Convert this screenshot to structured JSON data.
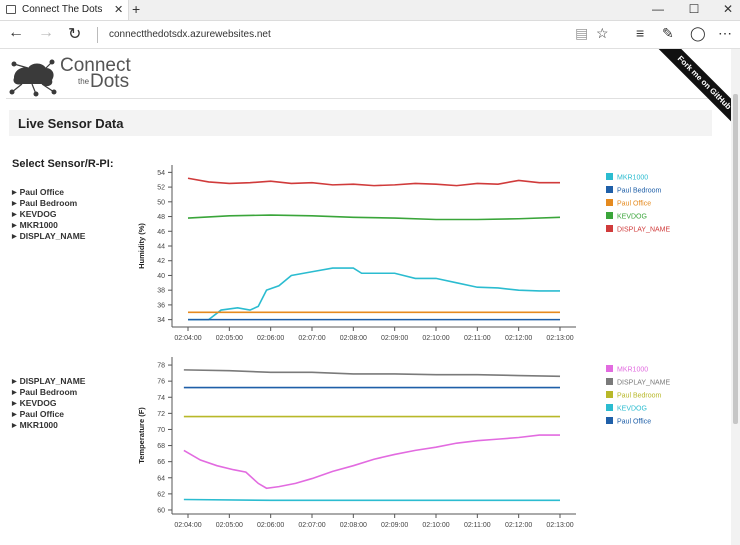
{
  "tab": {
    "title": "Connect The Dots",
    "close": "✕",
    "new": "+"
  },
  "window": {
    "min": "—",
    "max": "☐",
    "close": "✕"
  },
  "address": {
    "url": "connectthedotsdx.azurewebsites.net"
  },
  "logo": {
    "line1": "Connect",
    "line2": "the",
    "line3": "Dots"
  },
  "ribbon": {
    "label": "Fork me on GitHub"
  },
  "section": {
    "title": "Live Sensor Data"
  },
  "sidebar": {
    "label": "Select Sensor/R-PI:",
    "humidity_list": [
      "Paul Office",
      "Paul Bedroom",
      "KEVDOG",
      "MKR1000",
      "DISPLAY_NAME"
    ],
    "temperature_list": [
      "DISPLAY_NAME",
      "Paul Bedroom",
      "KEVDOG",
      "Paul Office",
      "MKR1000"
    ]
  },
  "chart_data": [
    {
      "type": "line",
      "title": "",
      "ylabel": "Humidity (%)",
      "xlabel": "",
      "ylim": [
        33,
        55
      ],
      "yticks": [
        34,
        36,
        38,
        40,
        42,
        44,
        46,
        48,
        50,
        52,
        54
      ],
      "x": [
        "02:04:00",
        "02:05:00",
        "02:06:00",
        "02:07:00",
        "02:08:00",
        "02:09:00",
        "02:10:00",
        "02:11:00",
        "02:12:00",
        "02:13:00"
      ],
      "grid": false,
      "legend_position": "right",
      "series": [
        {
          "name": "MKR1000",
          "color": "#2bbcd0",
          "points": [
            [
              0,
              34
            ],
            [
              0.5,
              34
            ],
            [
              0.8,
              35.3
            ],
            [
              1.2,
              35.6
            ],
            [
              1.5,
              35.3
            ],
            [
              1.7,
              35.8
            ],
            [
              1.9,
              38
            ],
            [
              2.2,
              38.6
            ],
            [
              2.5,
              40
            ],
            [
              3,
              40.5
            ],
            [
              3.5,
              41
            ],
            [
              4,
              41
            ],
            [
              4.2,
              40.3
            ],
            [
              5,
              40.3
            ],
            [
              5.5,
              39.6
            ],
            [
              6,
              39.6
            ],
            [
              6.5,
              39
            ],
            [
              7,
              38.4
            ],
            [
              7.5,
              38.3
            ],
            [
              8,
              38
            ],
            [
              8.5,
              37.9
            ],
            [
              9,
              37.9
            ]
          ]
        },
        {
          "name": "Paul Bedroom",
          "color": "#1f5fa8",
          "points": [
            [
              0,
              34
            ],
            [
              9,
              34
            ]
          ]
        },
        {
          "name": "Paul Office",
          "color": "#e58a1f",
          "points": [
            [
              0,
              35
            ],
            [
              9,
              35
            ]
          ]
        },
        {
          "name": "KEVDOG",
          "color": "#3aa53a",
          "points": [
            [
              0,
              47.8
            ],
            [
              1,
              48.1
            ],
            [
              2,
              48.2
            ],
            [
              3,
              48.1
            ],
            [
              4,
              47.9
            ],
            [
              5,
              47.8
            ],
            [
              6,
              47.6
            ],
            [
              7,
              47.6
            ],
            [
              8,
              47.7
            ],
            [
              9,
              47.9
            ]
          ]
        },
        {
          "name": "DISPLAY_NAME",
          "color": "#d03b3b",
          "points": [
            [
              0,
              53.2
            ],
            [
              0.5,
              52.7
            ],
            [
              1,
              52.5
            ],
            [
              1.5,
              52.6
            ],
            [
              2,
              52.8
            ],
            [
              2.5,
              52.5
            ],
            [
              3,
              52.6
            ],
            [
              3.5,
              52.3
            ],
            [
              4,
              52.4
            ],
            [
              4.5,
              52.2
            ],
            [
              5,
              52.3
            ],
            [
              5.5,
              52.5
            ],
            [
              6,
              52.4
            ],
            [
              6.5,
              52.2
            ],
            [
              7,
              52.5
            ],
            [
              7.5,
              52.4
            ],
            [
              8,
              52.9
            ],
            [
              8.5,
              52.6
            ],
            [
              9,
              52.6
            ]
          ]
        }
      ]
    },
    {
      "type": "line",
      "title": "",
      "ylabel": "Temperature (F)",
      "xlabel": "",
      "ylim": [
        59.5,
        79
      ],
      "yticks": [
        60,
        62,
        64,
        66,
        68,
        70,
        72,
        74,
        76,
        78
      ],
      "x": [
        "02:04:00",
        "02:05:00",
        "02:06:00",
        "02:07:00",
        "02:08:00",
        "02:09:00",
        "02:10:00",
        "02:11:00",
        "02:12:00",
        "02:13:00"
      ],
      "grid": false,
      "legend_position": "right",
      "series": [
        {
          "name": "MKR1000",
          "color": "#e26be0",
          "points": [
            [
              -0.1,
              67.4
            ],
            [
              0.3,
              66.2
            ],
            [
              0.7,
              65.5
            ],
            [
              1.1,
              65
            ],
            [
              1.4,
              64.7
            ],
            [
              1.7,
              63.3
            ],
            [
              1.9,
              62.7
            ],
            [
              2.2,
              62.9
            ],
            [
              2.6,
              63.3
            ],
            [
              3,
              63.9
            ],
            [
              3.5,
              64.8
            ],
            [
              4,
              65.5
            ],
            [
              4.5,
              66.3
            ],
            [
              5,
              66.9
            ],
            [
              5.5,
              67.4
            ],
            [
              6,
              67.8
            ],
            [
              6.5,
              68.3
            ],
            [
              7,
              68.6
            ],
            [
              7.5,
              68.8
            ],
            [
              8,
              69
            ],
            [
              8.5,
              69.3
            ],
            [
              9,
              69.3
            ]
          ]
        },
        {
          "name": "DISPLAY_NAME",
          "color": "#7a7a7a",
          "points": [
            [
              -0.1,
              77.4
            ],
            [
              1,
              77.3
            ],
            [
              2,
              77.1
            ],
            [
              3,
              77.1
            ],
            [
              4,
              76.9
            ],
            [
              5,
              76.9
            ],
            [
              6,
              76.8
            ],
            [
              7,
              76.8
            ],
            [
              8,
              76.7
            ],
            [
              9,
              76.6
            ]
          ]
        },
        {
          "name": "Paul Bedroom",
          "color": "#b8b829",
          "points": [
            [
              -0.1,
              71.6
            ],
            [
              9,
              71.6
            ]
          ]
        },
        {
          "name": "KEVDOG",
          "color": "#2bbcd0",
          "points": [
            [
              -0.1,
              61.3
            ],
            [
              2,
              61.2
            ],
            [
              4,
              61.2
            ],
            [
              6,
              61.2
            ],
            [
              8,
              61.2
            ],
            [
              9,
              61.2
            ]
          ]
        },
        {
          "name": "Paul Office",
          "color": "#1f5fa8",
          "points": [
            [
              -0.1,
              75.2
            ],
            [
              9,
              75.2
            ]
          ]
        }
      ]
    }
  ]
}
